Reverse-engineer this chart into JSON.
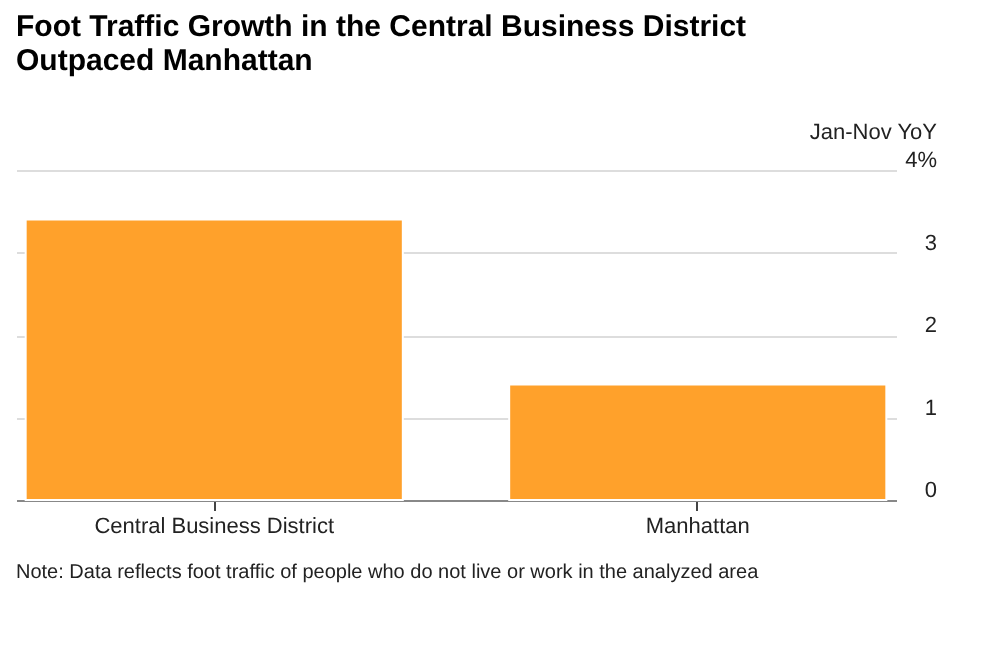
{
  "chart_data": {
    "type": "bar",
    "title": "Foot Traffic Growth in the Central Business District Outpaced Manhattan",
    "ylabel": "Jan-Nov YoY",
    "categories": [
      "Central Business District",
      "Manhattan"
    ],
    "series": [
      {
        "color": "#ffa12b",
        "values": [
          3.4,
          1.4
        ]
      }
    ],
    "ylim": [
      0,
      4
    ],
    "yticks": [
      0,
      1,
      2,
      3,
      {
        "value": 4,
        "label": "4%"
      }
    ],
    "grid": "y",
    "annotations": [
      "Note: Data reflects foot traffic of people who do not live or work in the analyzed area"
    ]
  }
}
